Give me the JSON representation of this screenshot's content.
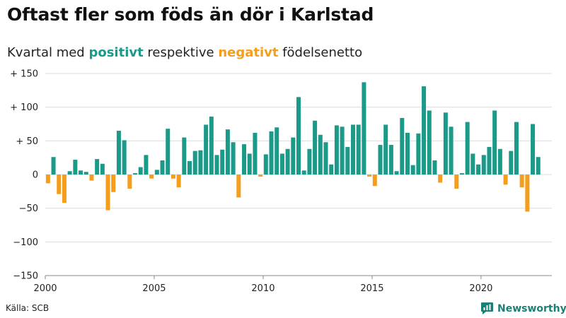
{
  "title": "Oftast fler som föds än dör i Karlstad",
  "subtitle": {
    "before": "Kvartal med ",
    "positive": "positivt",
    "middle": " respektive ",
    "negative": "negativt",
    "after": " födelsenetto"
  },
  "source": "Källa: SCB",
  "brand": "Newsworthy",
  "colors": {
    "positive": "#1b9a8a",
    "negative": "#f59d1c",
    "brand": "#1b7f76"
  },
  "chart_data": {
    "type": "bar",
    "x_start": "2000 Q1",
    "interval": "quarter",
    "xlim": [
      2000,
      2023.25
    ],
    "ylim": [
      -150,
      150
    ],
    "yticks": [
      {
        "value": 150,
        "label": "+ 150"
      },
      {
        "value": 100,
        "label": "+ 100"
      },
      {
        "value": 50,
        "label": "+  50"
      },
      {
        "value": 0,
        "label": "0"
      },
      {
        "value": -50,
        "label": "−50"
      },
      {
        "value": -100,
        "label": "−100"
      },
      {
        "value": -150,
        "label": "−150"
      }
    ],
    "xticks": [
      {
        "value": 2000,
        "label": "2000"
      },
      {
        "value": 2005,
        "label": "2005"
      },
      {
        "value": 2010,
        "label": "2010"
      },
      {
        "value": 2015,
        "label": "2015"
      },
      {
        "value": 2020,
        "label": "2020"
      }
    ],
    "grid": true,
    "values": [
      -13,
      26,
      -29,
      -42,
      5,
      22,
      6,
      4,
      -9,
      23,
      16,
      -53,
      -26,
      65,
      51,
      -21,
      2,
      11,
      29,
      -6,
      7,
      21,
      68,
      -6,
      -19,
      55,
      20,
      35,
      36,
      74,
      86,
      29,
      37,
      67,
      48,
      -34,
      45,
      31,
      62,
      -3,
      30,
      64,
      70,
      31,
      38,
      55,
      115,
      6,
      38,
      80,
      59,
      48,
      15,
      73,
      71,
      41,
      74,
      74,
      137,
      -3,
      -17,
      44,
      74,
      44,
      5,
      84,
      62,
      14,
      61,
      131,
      95,
      21,
      -12,
      92,
      71,
      -21,
      2,
      78,
      31,
      15,
      29,
      41,
      95,
      38,
      -15,
      35,
      78,
      -19,
      -55,
      75,
      26
    ]
  }
}
